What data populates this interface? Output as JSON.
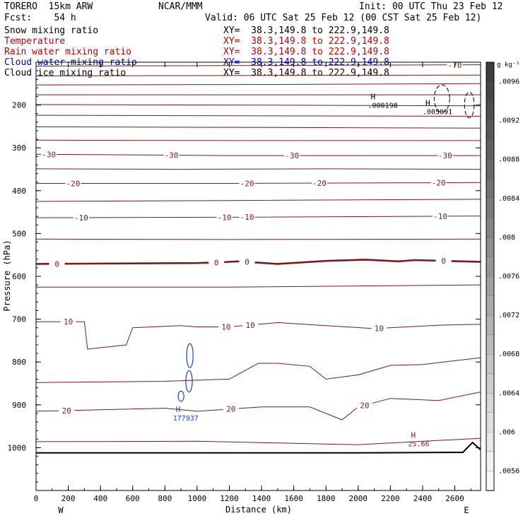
{
  "header": {
    "model": "TORERO  15km ARW",
    "center": "NCAR/MMM",
    "init": "Init: 00 UTC Thu 23 Feb 12",
    "fcst": "Fcst:    54 h",
    "valid": "Valid: 06 UTC Sat 25 Feb 12 (00 CST Sat 25 Feb 12)"
  },
  "fields": [
    {
      "name": "Snow mixing ratio",
      "xy": "XY=  38.3,149.8 to 222.9,149.8",
      "color": "#000000"
    },
    {
      "name": "Temperature",
      "xy": "XY=  38.3,149.8 to 222.9,149.8",
      "color": "#c00000"
    },
    {
      "name": "Rain water mixing ratio",
      "xy": "XY=  38.3,149.8 to 222.9,149.8",
      "color": "#c00000"
    },
    {
      "name": "Cloud water mixing ratio",
      "xy": "XY=  38.3,149.8 to 222.9,149.8",
      "color": "#0000c0"
    },
    {
      "name": "Cloud ice mixing ratio",
      "xy": "XY=  38.3,149.8 to 222.9,149.8",
      "color": "#000000"
    }
  ],
  "colors": {
    "temperature": "#7a1a1a",
    "cloud_water": "#1a3fc4",
    "axis": "#000000"
  },
  "chart_data": {
    "type": "cross-section contour",
    "xlabel": "Distance (km)",
    "ylabel": "Pressure (hPa)",
    "xlim": [
      0,
      2760
    ],
    "ylim": [
      1100,
      100
    ],
    "xticks": [
      0,
      200,
      400,
      600,
      800,
      1000,
      1200,
      1400,
      1600,
      1800,
      2000,
      2200,
      2400,
      2600
    ],
    "yticks": [
      200,
      300,
      400,
      500,
      600,
      700,
      800,
      900,
      1000
    ],
    "x_end_labels": {
      "left": "W",
      "right": "E"
    },
    "colorbar": {
      "unit": "g kg⁻¹",
      "labels": [
        ".0096",
        ".0092",
        ".0088",
        ".0084",
        ".008",
        ".0076",
        ".0072",
        ".0068",
        ".0064",
        ".006",
        ".0056"
      ],
      "min": 0.0054,
      "max": 0.0098
    },
    "temperature_contours": [
      {
        "value": -70,
        "p": [
          {
            "x": 0,
            "p": 109
          },
          {
            "x": 1200,
            "p": 108
          },
          {
            "x": 2760,
            "p": 106
          }
        ],
        "labels": [
          {
            "x": 2600,
            "text": "-70"
          }
        ]
      },
      {
        "value": -65,
        "p": [
          {
            "x": 0,
            "p": 132
          },
          {
            "x": 2760,
            "p": 130
          }
        ]
      },
      {
        "value": -60,
        "p": [
          {
            "x": 0,
            "p": 153
          },
          {
            "x": 1500,
            "p": 152
          },
          {
            "x": 2760,
            "p": 150
          }
        ]
      },
      {
        "value": -55,
        "p": [
          {
            "x": 0,
            "p": 176
          },
          {
            "x": 1200,
            "p": 176
          },
          {
            "x": 2760,
            "p": 176
          }
        ]
      },
      {
        "value": -50,
        "p": [
          {
            "x": 0,
            "p": 199
          },
          {
            "x": 1200,
            "p": 200
          },
          {
            "x": 2760,
            "p": 202
          }
        ]
      },
      {
        "value": -45,
        "p": [
          {
            "x": 0,
            "p": 224
          },
          {
            "x": 1200,
            "p": 225
          },
          {
            "x": 2760,
            "p": 226
          }
        ]
      },
      {
        "value": -40,
        "p": [
          {
            "x": 0,
            "p": 251
          },
          {
            "x": 1200,
            "p": 252
          },
          {
            "x": 2760,
            "p": 254
          }
        ]
      },
      {
        "value": -35,
        "p": [
          {
            "x": 0,
            "p": 282
          },
          {
            "x": 1200,
            "p": 283
          },
          {
            "x": 2760,
            "p": 283
          }
        ]
      },
      {
        "value": -30,
        "p": [
          {
            "x": 0,
            "p": 315
          },
          {
            "x": 1200,
            "p": 318
          },
          {
            "x": 2760,
            "p": 318
          }
        ],
        "labels": [
          {
            "x": 80,
            "text": "-30"
          },
          {
            "x": 840,
            "text": "-30"
          },
          {
            "x": 1590,
            "text": "-30"
          },
          {
            "x": 2540,
            "text": "-30"
          }
        ]
      },
      {
        "value": -25,
        "p": [
          {
            "x": 0,
            "p": 349
          },
          {
            "x": 900,
            "p": 350
          },
          {
            "x": 1800,
            "p": 349
          },
          {
            "x": 2760,
            "p": 350
          }
        ]
      },
      {
        "value": -20,
        "p": [
          {
            "x": 0,
            "p": 383
          },
          {
            "x": 1200,
            "p": 383
          },
          {
            "x": 2760,
            "p": 381
          }
        ],
        "labels": [
          {
            "x": 230,
            "text": "-20"
          },
          {
            "x": 1310,
            "text": "-20"
          },
          {
            "x": 1760,
            "text": "-20"
          },
          {
            "x": 2500,
            "text": "-20"
          }
        ]
      },
      {
        "value": -15,
        "p": [
          {
            "x": 0,
            "p": 425
          },
          {
            "x": 1200,
            "p": 423
          },
          {
            "x": 2760,
            "p": 420
          }
        ]
      },
      {
        "value": -10,
        "p": [
          {
            "x": 0,
            "p": 463
          },
          {
            "x": 1200,
            "p": 462
          },
          {
            "x": 2760,
            "p": 459
          }
        ],
        "labels": [
          {
            "x": 280,
            "text": "-10"
          },
          {
            "x": 1170,
            "text": "-10"
          },
          {
            "x": 1310,
            "text": "-10"
          },
          {
            "x": 2510,
            "text": "-10"
          }
        ]
      },
      {
        "value": -5,
        "p": [
          {
            "x": 0,
            "p": 513
          },
          {
            "x": 1200,
            "p": 514
          },
          {
            "x": 2760,
            "p": 513
          }
        ]
      },
      {
        "value": 0,
        "bold": true,
        "p": [
          {
            "x": 0,
            "p": 571
          },
          {
            "x": 500,
            "p": 570
          },
          {
            "x": 1000,
            "p": 569
          },
          {
            "x": 1160,
            "p": 567
          },
          {
            "x": 1250,
            "p": 565
          },
          {
            "x": 1500,
            "p": 571
          },
          {
            "x": 1800,
            "p": 564
          },
          {
            "x": 2050,
            "p": 561
          },
          {
            "x": 2250,
            "p": 565
          },
          {
            "x": 2350,
            "p": 562
          },
          {
            "x": 2550,
            "p": 564
          },
          {
            "x": 2760,
            "p": 566
          }
        ],
        "labels": [
          {
            "x": 130,
            "text": "0"
          },
          {
            "x": 1120,
            "text": "0"
          },
          {
            "x": 1310,
            "text": "0"
          },
          {
            "x": 2530,
            "text": "0"
          }
        ]
      },
      {
        "value": 5,
        "p": [
          {
            "x": 0,
            "p": 625
          },
          {
            "x": 1200,
            "p": 625
          },
          {
            "x": 2760,
            "p": 620
          }
        ]
      },
      {
        "value": 10,
        "p": [
          {
            "x": 0,
            "p": 706
          },
          {
            "x": 300,
            "p": 706
          },
          {
            "x": 320,
            "p": 770
          },
          {
            "x": 560,
            "p": 760
          },
          {
            "x": 600,
            "p": 720
          },
          {
            "x": 900,
            "p": 715
          },
          {
            "x": 1000,
            "p": 718
          },
          {
            "x": 1200,
            "p": 718
          },
          {
            "x": 1500,
            "p": 708
          },
          {
            "x": 1800,
            "p": 715
          },
          {
            "x": 2100,
            "p": 722
          },
          {
            "x": 2500,
            "p": 714
          },
          {
            "x": 2760,
            "p": 712
          }
        ],
        "labels": [
          {
            "x": 200,
            "text": "10"
          },
          {
            "x": 1180,
            "text": "10"
          },
          {
            "x": 1330,
            "text": "10"
          },
          {
            "x": 2130,
            "text": "10"
          }
        ]
      },
      {
        "value": 15,
        "p": [
          {
            "x": 0,
            "p": 848
          },
          {
            "x": 800,
            "p": 845
          },
          {
            "x": 1200,
            "p": 840
          },
          {
            "x": 1380,
            "p": 803
          },
          {
            "x": 1500,
            "p": 803
          },
          {
            "x": 1700,
            "p": 810
          },
          {
            "x": 1800,
            "p": 840
          },
          {
            "x": 2000,
            "p": 830
          },
          {
            "x": 2200,
            "p": 808
          },
          {
            "x": 2400,
            "p": 806
          },
          {
            "x": 2760,
            "p": 790
          }
        ]
      },
      {
        "value": 20,
        "p": [
          {
            "x": 0,
            "p": 915
          },
          {
            "x": 800,
            "p": 908
          },
          {
            "x": 1000,
            "p": 915
          },
          {
            "x": 1400,
            "p": 905
          },
          {
            "x": 1700,
            "p": 905
          },
          {
            "x": 1900,
            "p": 935
          },
          {
            "x": 2000,
            "p": 905
          },
          {
            "x": 2200,
            "p": 885
          },
          {
            "x": 2500,
            "p": 890
          },
          {
            "x": 2760,
            "p": 870
          }
        ],
        "labels": [
          {
            "x": 190,
            "text": "20"
          },
          {
            "x": 1210,
            "text": "20"
          },
          {
            "x": 2040,
            "text": "20"
          }
        ]
      },
      {
        "value": 25,
        "p": [
          {
            "x": 0,
            "p": 986
          },
          {
            "x": 1000,
            "p": 985
          },
          {
            "x": 2000,
            "p": 993
          },
          {
            "x": 2760,
            "p": 978
          }
        ]
      }
    ],
    "cloud_water_contours": [
      {
        "center": {
          "x": 955,
          "p": 785
        },
        "rx": 20,
        "rp": 28
      },
      {
        "center": {
          "x": 950,
          "p": 845
        },
        "rx": 20,
        "rp": 25
      },
      {
        "center": {
          "x": 900,
          "p": 880
        },
        "rx": 18,
        "rp": 12
      }
    ],
    "snow_contours": [
      {
        "center": {
          "x": 2520,
          "p": 185
        },
        "rx": 48,
        "rp": 32
      },
      {
        "center": {
          "x": 2690,
          "p": 200
        },
        "rx": 30,
        "rp": 30
      }
    ],
    "terrain": [
      {
        "x": 0,
        "p": 1012
      },
      {
        "x": 2000,
        "p": 1012
      },
      {
        "x": 2650,
        "p": 1011
      },
      {
        "x": 2710,
        "p": 988
      },
      {
        "x": 2760,
        "p": 1005
      }
    ],
    "markers": [
      {
        "letter": "H",
        "value": ".000198",
        "x": 2060,
        "p": 190,
        "color": "#000000"
      },
      {
        "letter": "H",
        "value": ".005091",
        "x": 2400,
        "p": 205,
        "color": "#000000"
      },
      {
        "letter": "H",
        "value": "177937",
        "x": 850,
        "p": 920,
        "color": "#1a3fc4"
      },
      {
        "letter": "H",
        "value": "25.66",
        "x": 2310,
        "p": 980,
        "color": "#7a1a1a"
      }
    ]
  }
}
